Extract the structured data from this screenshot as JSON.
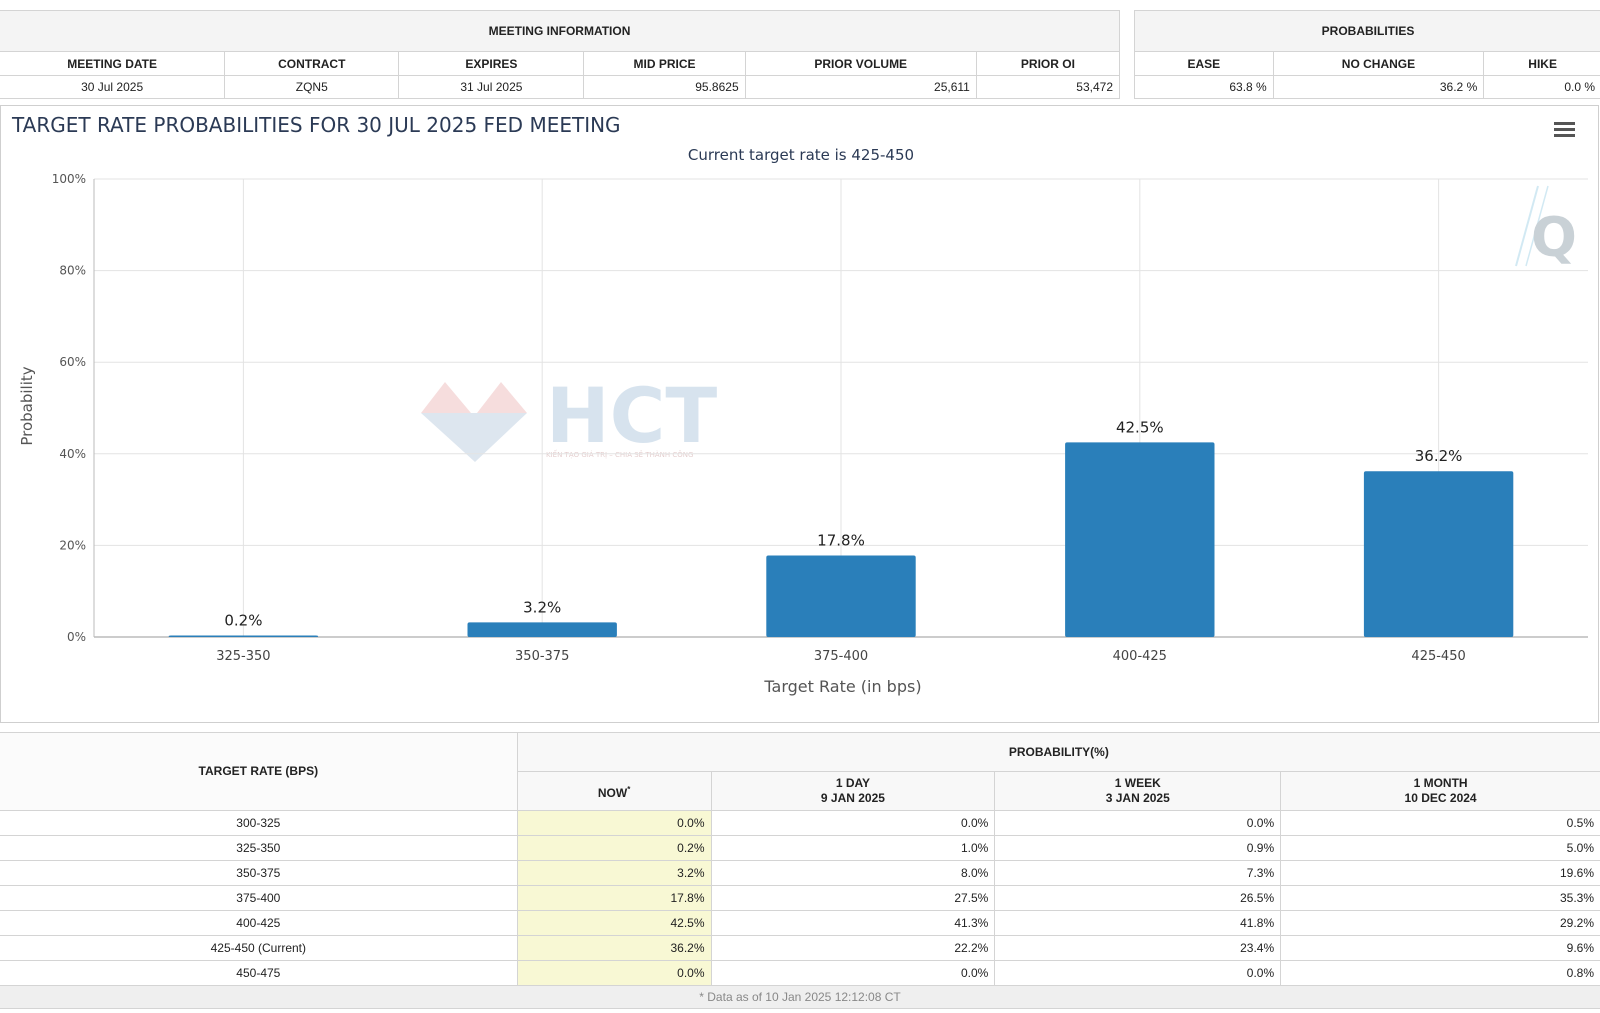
{
  "meeting_info": {
    "section_title": "MEETING INFORMATION",
    "headers": [
      "MEETING DATE",
      "CONTRACT",
      "EXPIRES",
      "MID PRICE",
      "PRIOR VOLUME",
      "PRIOR OI"
    ],
    "values": [
      "30 Jul 2025",
      "ZQN5",
      "31 Jul 2025",
      "95.8625",
      "25,611",
      "53,472"
    ]
  },
  "probabilities": {
    "section_title": "PROBABILITIES",
    "headers": [
      "EASE",
      "NO CHANGE",
      "HIKE"
    ],
    "values": [
      "63.8 %",
      "36.2 %",
      "0.0 %"
    ]
  },
  "chart": {
    "title": "TARGET RATE PROBABILITIES FOR 30 JUL 2025 FED MEETING",
    "subtitle": "Current target rate is 425-450",
    "menu_icon": "hamburger-menu-icon",
    "watermark_text": "HCT",
    "watermark_tagline": "KIẾN TẠO GIÁ TRỊ – CHIA SẺ THÀNH CÔNG",
    "logo_letter": "Q",
    "bar_color": "#2a7fba"
  },
  "chart_data": {
    "type": "bar",
    "title": "TARGET RATE PROBABILITIES FOR 30 JUL 2025 FED MEETING",
    "subtitle": "Current target rate is 425-450",
    "categories": [
      "325-350",
      "350-375",
      "375-400",
      "400-425",
      "425-450"
    ],
    "values": [
      0.2,
      3.2,
      17.8,
      42.5,
      36.2
    ],
    "data_labels": [
      "0.2%",
      "3.2%",
      "17.8%",
      "42.5%",
      "36.2%"
    ],
    "xlabel": "Target Rate (in bps)",
    "ylabel": "Probability",
    "ylim": [
      0,
      100
    ],
    "yticks": [
      0,
      20,
      40,
      60,
      80,
      100
    ],
    "ytick_labels": [
      "0%",
      "20%",
      "40%",
      "60%",
      "80%",
      "100%"
    ],
    "grid": true
  },
  "prob_table": {
    "col_target": "TARGET RATE (BPS)",
    "group_header": "PROBABILITY(%)",
    "col_now": "NOW",
    "col_now_mark": "*",
    "col_1day": [
      "1 DAY",
      "9 JAN 2025"
    ],
    "col_1week": [
      "1 WEEK",
      "3 JAN 2025"
    ],
    "col_1month": [
      "1 MONTH",
      "10 DEC 2024"
    ],
    "rows": [
      {
        "rate": "300-325",
        "now": "0.0%",
        "day": "0.0%",
        "week": "0.0%",
        "month": "0.5%"
      },
      {
        "rate": "325-350",
        "now": "0.2%",
        "day": "1.0%",
        "week": "0.9%",
        "month": "5.0%"
      },
      {
        "rate": "350-375",
        "now": "3.2%",
        "day": "8.0%",
        "week": "7.3%",
        "month": "19.6%"
      },
      {
        "rate": "375-400",
        "now": "17.8%",
        "day": "27.5%",
        "week": "26.5%",
        "month": "35.3%"
      },
      {
        "rate": "400-425",
        "now": "42.5%",
        "day": "41.3%",
        "week": "41.8%",
        "month": "29.2%"
      },
      {
        "rate": "425-450 (Current)",
        "now": "36.2%",
        "day": "22.2%",
        "week": "23.4%",
        "month": "9.6%"
      },
      {
        "rate": "450-475",
        "now": "0.0%",
        "day": "0.0%",
        "week": "0.0%",
        "month": "0.8%"
      }
    ],
    "footnote": "* Data as of 10 Jan 2025 12:12:08 CT"
  }
}
